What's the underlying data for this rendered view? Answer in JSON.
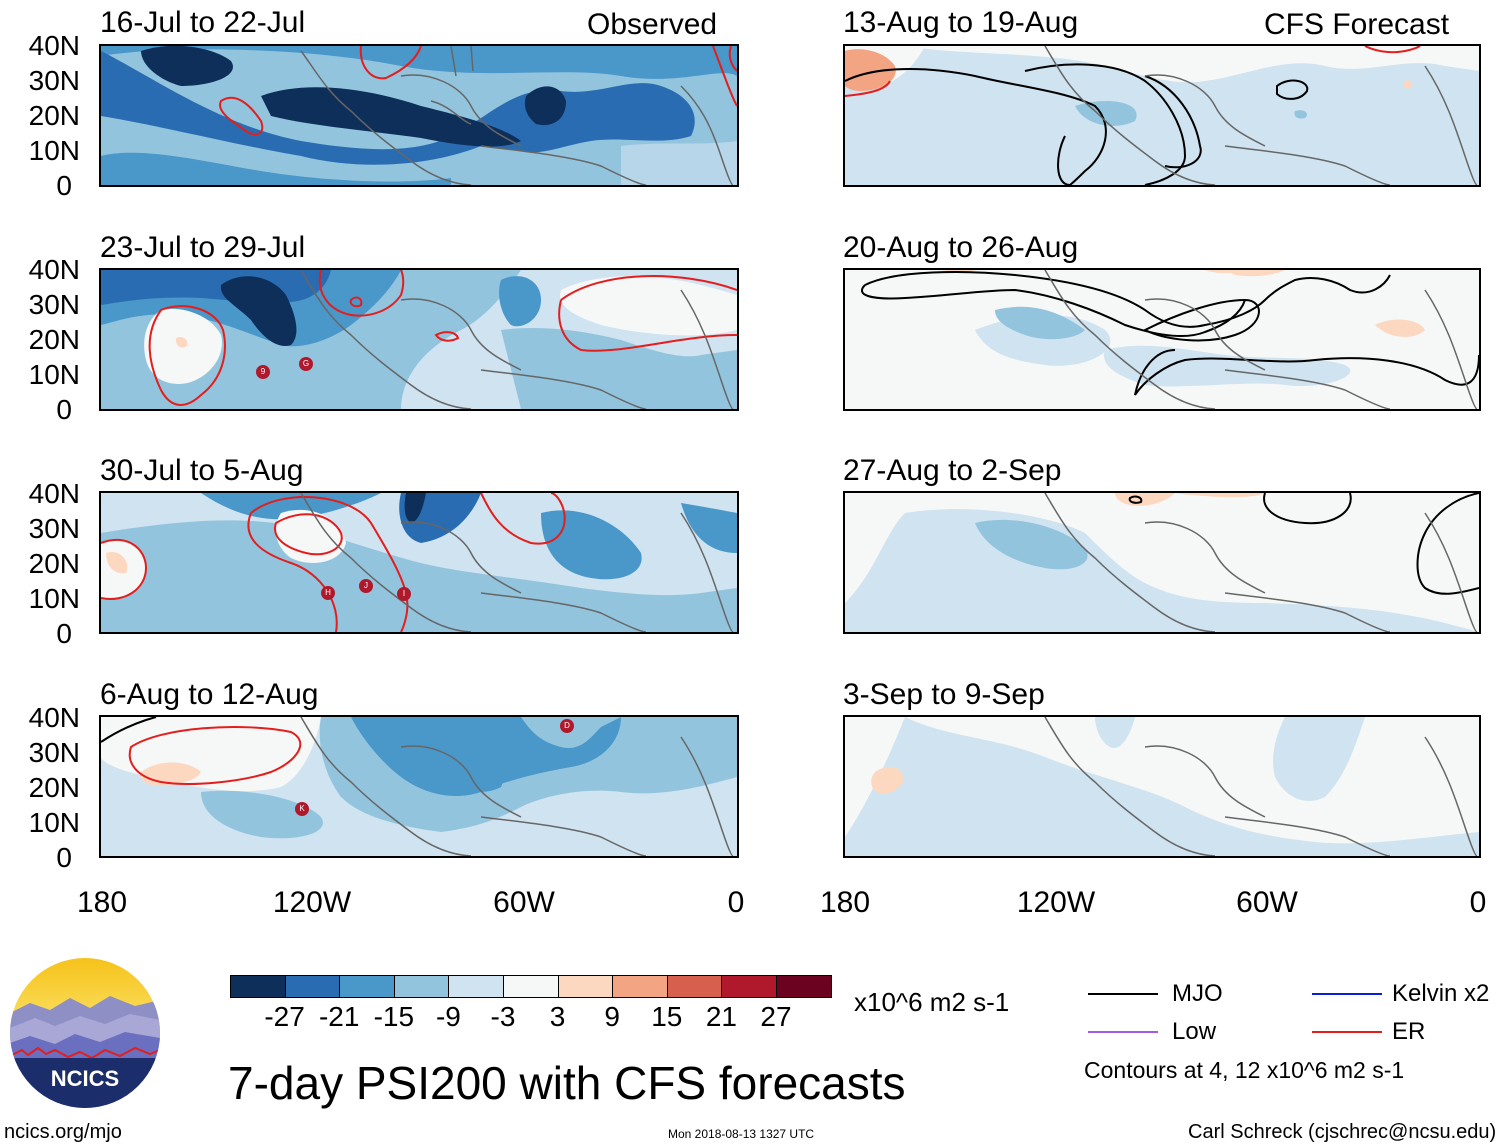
{
  "headers": {
    "observed": "Observed",
    "forecast": "CFS Forecast"
  },
  "panels": [
    {
      "title": "16-Jul to 22-Jul",
      "col": 0,
      "row": 0
    },
    {
      "title": "23-Jul to 29-Jul",
      "col": 0,
      "row": 1
    },
    {
      "title": "30-Jul to 5-Aug",
      "col": 0,
      "row": 2
    },
    {
      "title": "6-Aug to 12-Aug",
      "col": 0,
      "row": 3
    },
    {
      "title": "13-Aug to 19-Aug",
      "col": 1,
      "row": 0
    },
    {
      "title": "20-Aug to 26-Aug",
      "col": 1,
      "row": 1
    },
    {
      "title": "27-Aug to 2-Sep",
      "col": 1,
      "row": 2
    },
    {
      "title": "3-Sep to 9-Sep",
      "col": 1,
      "row": 3
    }
  ],
  "lat_labels": [
    "40N",
    "30N",
    "20N",
    "10N",
    "0"
  ],
  "lon_labels": [
    "180",
    "120W",
    "60W",
    "0"
  ],
  "colorbar": {
    "colors": [
      "#0e2f5a",
      "#2a6cb1",
      "#4a97c9",
      "#93c4de",
      "#cfe3f0",
      "#f6f7f7",
      "#fcd8c1",
      "#f3a482",
      "#d65f4d",
      "#b0182b",
      "#6a0220"
    ],
    "labels": [
      "-27",
      "-21",
      "-15",
      "-9",
      "-3",
      "3",
      "9",
      "15",
      "21",
      "27"
    ],
    "units": "x10^6 m2 s-1"
  },
  "storm_markers": {
    "p1": [
      "9",
      "G"
    ],
    "p2": [
      "H",
      "J",
      "I"
    ],
    "p3": [
      "D",
      "K"
    ]
  },
  "main_title": "7-day PSI200 with CFS forecasts",
  "legend": {
    "items": [
      {
        "label": "MJO",
        "color": "#000000"
      },
      {
        "label": "Kelvin x2",
        "color": "#0a1fd4"
      },
      {
        "label": "Low",
        "color": "#a35be8"
      },
      {
        "label": "ER",
        "color": "#e41d1d"
      }
    ],
    "contours_note": "Contours at 4, 12 x10^6 m2 s-1"
  },
  "logo": {
    "text": "NCICS"
  },
  "footer": {
    "left": "ncics.org/mjo",
    "center": "Mon 2018-08-13 1327 UTC",
    "right": "Carl Schreck (cjschrec@ncsu.edu)"
  }
}
